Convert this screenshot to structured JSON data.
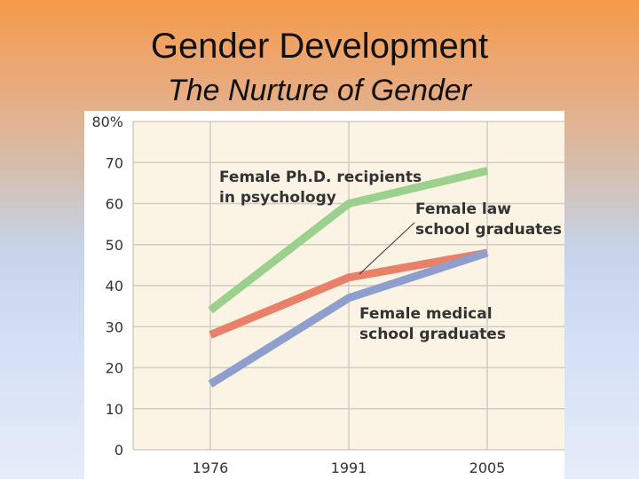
{
  "slide": {
    "title": "Gender Development",
    "subtitle": "The Nurture of Gender"
  },
  "chart_data": {
    "type": "line",
    "categories": [
      "1976",
      "1991",
      "2005"
    ],
    "yticks": [
      "0",
      "10",
      "20",
      "30",
      "40",
      "50",
      "60",
      "70",
      "80%"
    ],
    "ylim": [
      0,
      80
    ],
    "grid": true,
    "series": [
      {
        "name": "Female Ph.D. recipients in psychology",
        "values": [
          34,
          60,
          68
        ],
        "color": "#9bd08e"
      },
      {
        "name": "Female law school graduates",
        "values": [
          28,
          42,
          48
        ],
        "color": "#e8806a"
      },
      {
        "name": "Female medical school graduates",
        "values": [
          16,
          37,
          48
        ],
        "color": "#8e9fce"
      }
    ],
    "annotations": [
      {
        "lines": [
          "Female Ph.D. recipients",
          "in psychology"
        ]
      },
      {
        "lines": [
          "Female law",
          "school graduates"
        ]
      },
      {
        "lines": [
          "Female medical",
          "school graduates"
        ]
      }
    ],
    "plot_background": "#fbf3e4"
  }
}
